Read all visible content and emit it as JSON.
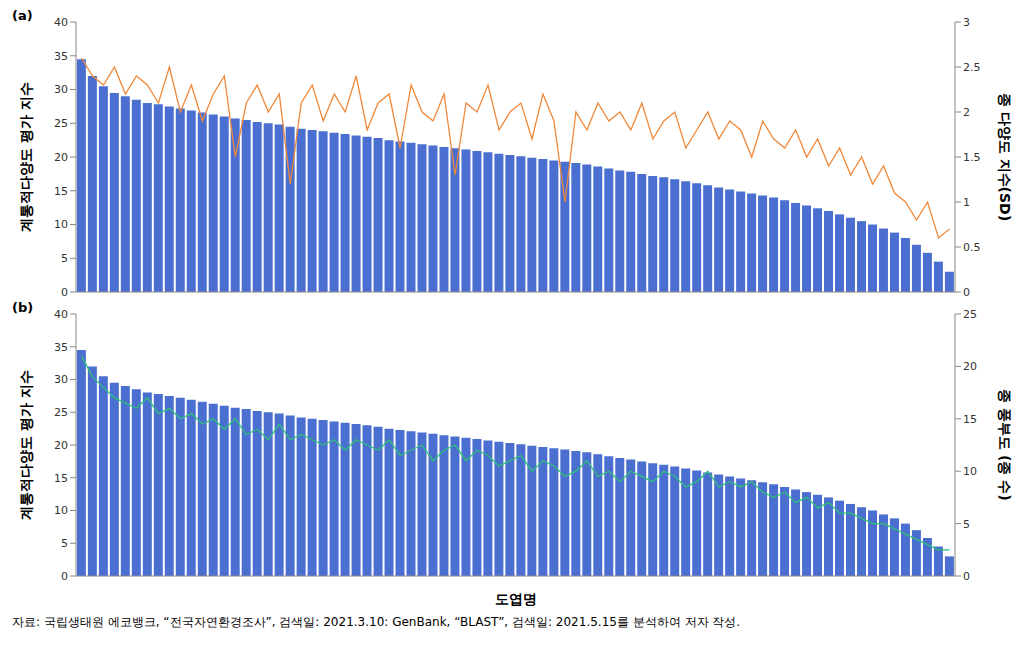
{
  "chart_data": [
    {
      "type": "bar",
      "title": "(a)",
      "y_label": "계통적다양도 평가 지수",
      "y2_label": "종 다양도 지수(SD)",
      "categories": [
        null,
        null,
        null,
        null,
        null,
        null,
        null,
        null,
        null,
        null,
        null,
        null,
        null,
        null,
        null,
        null,
        null,
        null,
        null,
        null,
        null,
        null,
        null,
        null,
        null,
        null,
        null,
        null,
        null,
        null,
        null,
        null,
        null,
        null,
        null,
        null,
        null,
        null,
        null,
        null,
        null,
        null,
        null,
        null,
        null,
        null,
        null,
        null,
        null,
        null,
        null,
        null,
        null,
        null,
        null,
        null,
        null,
        null,
        null,
        null,
        null,
        null,
        null,
        null,
        null,
        null,
        null,
        null,
        null,
        null,
        null,
        null,
        null,
        null,
        null,
        null,
        null,
        null,
        null,
        null
      ],
      "series": [
        {
          "color": "#4a6fd0",
          "values": [
            34.5,
            32,
            30.5,
            29.5,
            29,
            28.5,
            28,
            27.8,
            27.5,
            27.2,
            26.9,
            26.6,
            26.3,
            26,
            25.7,
            25.5,
            25.2,
            25,
            24.8,
            24.5,
            24.2,
            24,
            23.8,
            23.6,
            23.4,
            23.2,
            23,
            22.8,
            22.5,
            22.3,
            22.1,
            21.9,
            21.7,
            21.5,
            21.3,
            21.1,
            20.9,
            20.7,
            20.5,
            20.3,
            20.1,
            19.9,
            19.7,
            19.5,
            19.3,
            19.1,
            18.9,
            18.6,
            18.3,
            18,
            17.8,
            17.5,
            17.2,
            17,
            16.7,
            16.4,
            16.1,
            15.8,
            15.5,
            15.2,
            14.9,
            14.6,
            14.3,
            14,
            13.6,
            13.2,
            12.8,
            12.4,
            12,
            11.5,
            11,
            10.5,
            10,
            9.4,
            8.8,
            8,
            7,
            5.8,
            4.5,
            3
          ]
        },
        {
          "type": "line",
          "axis": "y2",
          "color": "#f0883a",
          "values": [
            2.6,
            2.4,
            2.3,
            2.5,
            2.2,
            2.4,
            2.3,
            2.1,
            2.5,
            2.0,
            2.3,
            1.9,
            2.2,
            2.4,
            1.5,
            2.1,
            2.3,
            2.0,
            2.2,
            1.2,
            2.1,
            2.3,
            1.9,
            2.2,
            2.0,
            2.4,
            1.8,
            2.1,
            2.2,
            1.6,
            2.3,
            2.0,
            1.9,
            2.2,
            1.3,
            2.1,
            2.0,
            2.3,
            1.8,
            2.0,
            2.1,
            1.7,
            2.2,
            1.9,
            1.0,
            2.0,
            1.8,
            2.1,
            1.9,
            2.0,
            1.8,
            2.1,
            1.7,
            1.9,
            2.0,
            1.6,
            1.8,
            2.0,
            1.7,
            1.9,
            1.8,
            1.5,
            1.9,
            1.7,
            1.6,
            1.8,
            1.5,
            1.7,
            1.4,
            1.6,
            1.3,
            1.5,
            1.2,
            1.4,
            1.1,
            1.0,
            0.8,
            1.0,
            0.6,
            0.7
          ]
        }
      ],
      "ylim": [
        0,
        40
      ],
      "yticks": [
        0,
        5,
        10,
        15,
        20,
        25,
        30,
        35,
        40
      ],
      "y2lim": [
        0,
        3
      ],
      "y2ticks": [
        0,
        0.5,
        1,
        1.5,
        2,
        2.5,
        3
      ],
      "tick_labels": "y"
    },
    {
      "type": "bar",
      "title": "(b)",
      "x_label": "도엽명",
      "y_label": "계통적다양도 평가 지수",
      "y2_label": "종 풍부도 (종 수)",
      "categories": [
        null,
        null,
        null,
        null,
        null,
        null,
        null,
        null,
        null,
        null,
        null,
        null,
        null,
        null,
        null,
        null,
        null,
        null,
        null,
        null,
        null,
        null,
        null,
        null,
        null,
        null,
        null,
        null,
        null,
        null,
        null,
        null,
        null,
        null,
        null,
        null,
        null,
        null,
        null,
        null,
        null,
        null,
        null,
        null,
        null,
        null,
        null,
        null,
        null,
        null,
        null,
        null,
        null,
        null,
        null,
        null,
        null,
        null,
        null,
        null,
        null,
        null,
        null,
        null,
        null,
        null,
        null,
        null,
        null,
        null,
        null,
        null,
        null,
        null,
        null,
        null,
        null,
        null,
        null,
        null
      ],
      "series": [
        {
          "color": "#4a6fd0",
          "values": [
            34.5,
            32,
            30.5,
            29.5,
            29,
            28.5,
            28,
            27.8,
            27.5,
            27.2,
            26.9,
            26.6,
            26.3,
            26,
            25.7,
            25.5,
            25.2,
            25,
            24.8,
            24.5,
            24.2,
            24,
            23.8,
            23.6,
            23.4,
            23.2,
            23,
            22.8,
            22.5,
            22.3,
            22.1,
            21.9,
            21.7,
            21.5,
            21.3,
            21.1,
            20.9,
            20.7,
            20.5,
            20.3,
            20.1,
            19.9,
            19.7,
            19.5,
            19.3,
            19.1,
            18.9,
            18.6,
            18.3,
            18,
            17.8,
            17.5,
            17.2,
            17,
            16.7,
            16.4,
            16.1,
            15.8,
            15.5,
            15.2,
            14.9,
            14.6,
            14.3,
            14,
            13.6,
            13.2,
            12.8,
            12.4,
            12,
            11.5,
            11,
            10.5,
            10,
            9.4,
            8.8,
            8,
            7,
            5.8,
            4.5,
            3
          ]
        },
        {
          "type": "line",
          "axis": "y2",
          "color": "#2ebf7a",
          "values": [
            21,
            19,
            18,
            17,
            16.5,
            16,
            17,
            15.5,
            16,
            15,
            15.5,
            14.5,
            15,
            14,
            15,
            13.5,
            14,
            13,
            14.5,
            13,
            13.5,
            13,
            12.5,
            13,
            12,
            13,
            12.5,
            12,
            13,
            11.5,
            12,
            12.5,
            11,
            12,
            12.5,
            11,
            12,
            11.5,
            10.5,
            11,
            11.5,
            10,
            11,
            10.5,
            9.5,
            10,
            11,
            9.5,
            10,
            9,
            10,
            9.5,
            9,
            10,
            9.5,
            8.5,
            9,
            10,
            8.5,
            9,
            8.5,
            9,
            8,
            7.5,
            8,
            7,
            7.5,
            6.5,
            7,
            6,
            6,
            5.5,
            5,
            5,
            4.5,
            4,
            3.5,
            3,
            2.5,
            2.5
          ]
        }
      ],
      "ylim": [
        0,
        40
      ],
      "yticks": [
        0,
        5,
        10,
        15,
        20,
        25,
        30,
        35,
        40
      ],
      "y2lim": [
        0,
        25
      ],
      "y2ticks": [
        0,
        5,
        10,
        15,
        20,
        25
      ],
      "tick_labels": "y"
    }
  ],
  "source": "자료: 국립생태원 에코뱅크, “전국자연환경조사”, 검색일: 2021.3.10: GenBank, “BLAST”, 검색일: 2021.5.15를 분석하여 저자 작성."
}
